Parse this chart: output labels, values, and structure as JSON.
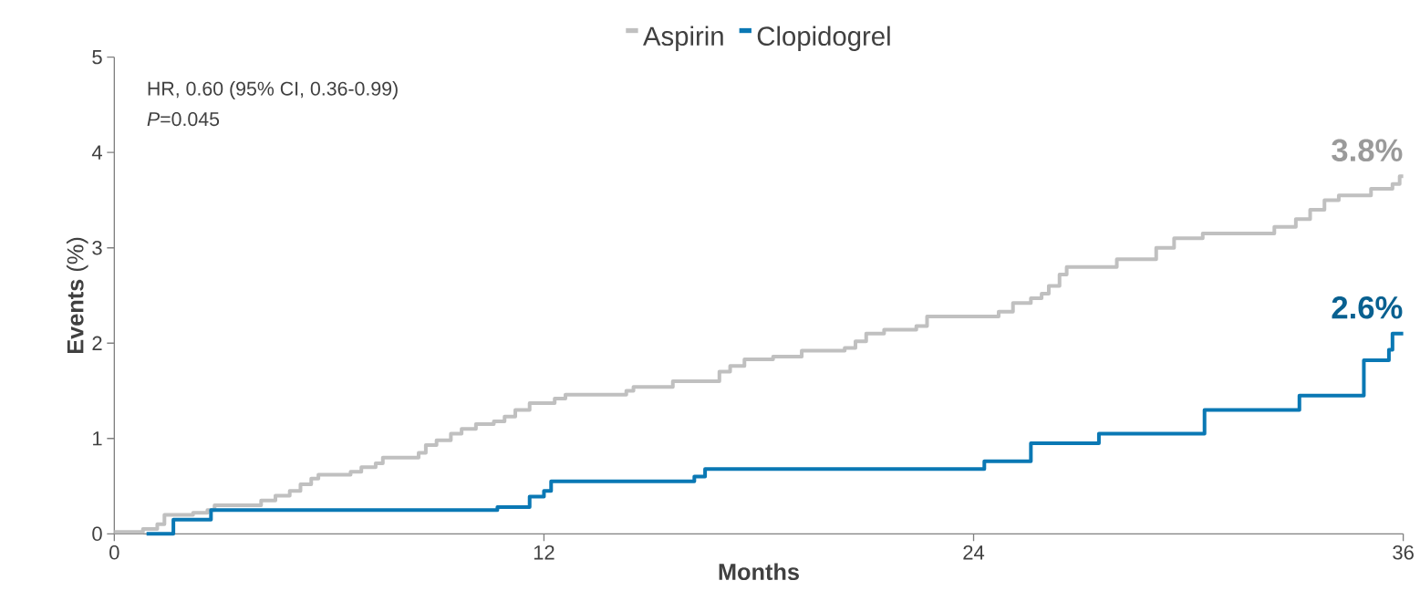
{
  "chart_data": {
    "type": "step",
    "xlabel": "Months",
    "ylabel": "**Events** (%)",
    "xlim": [
      0,
      36
    ],
    "xticks": [
      0,
      12,
      24,
      36
    ],
    "ylim": [
      0,
      5
    ],
    "yticks": [
      0,
      1,
      2,
      3,
      4,
      5
    ],
    "grid": false,
    "legend": "top",
    "marker": "none",
    "line_style": "solid",
    "annotations": [
      "HR, 0.60 (95% CI, 0.36-0.99)",
      "*P*=0.045",
      {
        "text": "3.8%",
        "x": 36,
        "y": 3.75
      },
      {
        "text": "2.6%",
        "x": 36,
        "y": 2.1
      }
    ],
    "series": [
      {
        "name": "Aspirin",
        "color": "#c0c0c0",
        "x": [
          0,
          0.8,
          1.2,
          1.4,
          2.2,
          2.6,
          2.8,
          4.1,
          4.5,
          4.9,
          5.2,
          5.5,
          5.7,
          6.6,
          6.9,
          7.3,
          7.5,
          8.5,
          8.7,
          9.0,
          9.4,
          9.7,
          10.1,
          10.6,
          10.9,
          11.2,
          11.6,
          12.3,
          12.6,
          14.3,
          14.5,
          15.6,
          16.9,
          17.2,
          17.6,
          18.4,
          19.2,
          20.4,
          20.7,
          21.0,
          21.5,
          22.4,
          22.7,
          24.7,
          25.1,
          25.6,
          25.9,
          26.1,
          26.4,
          26.6,
          28.0,
          29.1,
          29.6,
          30.4,
          32.4,
          33.0,
          33.4,
          33.8,
          34.2,
          35.1,
          35.7,
          35.9,
          36
        ],
        "values": [
          0.02,
          0.05,
          0.1,
          0.2,
          0.22,
          0.25,
          0.3,
          0.35,
          0.4,
          0.45,
          0.52,
          0.58,
          0.62,
          0.65,
          0.7,
          0.74,
          0.8,
          0.85,
          0.93,
          0.98,
          1.05,
          1.1,
          1.15,
          1.18,
          1.23,
          1.3,
          1.37,
          1.42,
          1.46,
          1.5,
          1.54,
          1.6,
          1.7,
          1.76,
          1.83,
          1.86,
          1.92,
          1.95,
          2.02,
          2.1,
          2.14,
          2.18,
          2.28,
          2.33,
          2.42,
          2.47,
          2.52,
          2.6,
          2.72,
          2.8,
          2.88,
          3.0,
          3.1,
          3.15,
          3.22,
          3.3,
          3.4,
          3.5,
          3.55,
          3.62,
          3.67,
          3.75,
          3.75
        ]
      },
      {
        "name": "Clopidogrel",
        "color": "#0a78b4",
        "x": [
          0.9,
          1.65,
          2.7,
          10.7,
          11.6,
          12.0,
          12.2,
          16.2,
          16.5,
          24.3,
          25.6,
          27.5,
          30.45,
          33.1,
          34.9,
          35.6,
          35.7,
          36
        ],
        "values": [
          0.0,
          0.15,
          0.25,
          0.28,
          0.39,
          0.45,
          0.55,
          0.6,
          0.68,
          0.76,
          0.95,
          1.05,
          1.3,
          1.45,
          1.82,
          1.93,
          2.1,
          2.1
        ]
      }
    ]
  }
}
